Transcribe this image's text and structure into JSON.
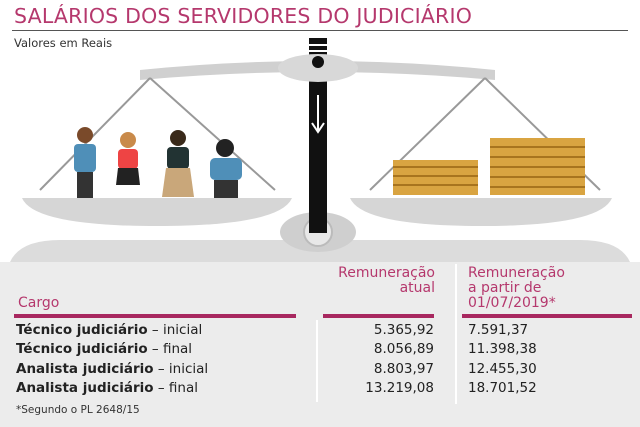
{
  "title": "SALÁRIOS DOS SERVIDORES DO JUDICIÁRIO",
  "subtitle": "Valores em Reais",
  "colors": {
    "accent": "#b5386d",
    "rule": "#a8285f",
    "table_bg": "#ececec",
    "coins": "#d9a441"
  },
  "icons": [
    "scale-of-justice",
    "people-group",
    "coin-stacks"
  ],
  "chart_data": {
    "type": "table",
    "columns": [
      "Cargo",
      "Remuneração atual",
      "Remuneração a partir de 01/07/2019*"
    ],
    "header": {
      "cargo": "Cargo",
      "atual_l1": "Remuneração",
      "atual_l2": "atual",
      "novo_l1": "Remuneração",
      "novo_l2": "a partir de",
      "novo_l3": "01/07/2019*"
    },
    "rows": [
      {
        "cargo_bold": "Técnico judiciário",
        "cargo_level": " – inicial",
        "atual": "5.365,92",
        "novo": "7.591,37"
      },
      {
        "cargo_bold": "Técnico judiciário",
        "cargo_level": " – final",
        "atual": "8.056,89",
        "novo": "11.398,38"
      },
      {
        "cargo_bold": "Analista judiciário",
        "cargo_level": " – inicial",
        "atual": "8.803,97",
        "novo": "12.455,30"
      },
      {
        "cargo_bold": "Analista judiciário",
        "cargo_level": " – final",
        "atual": "13.219,08",
        "novo": "18.701,52"
      }
    ],
    "footnote": "*Segundo o PL 2648/15"
  }
}
